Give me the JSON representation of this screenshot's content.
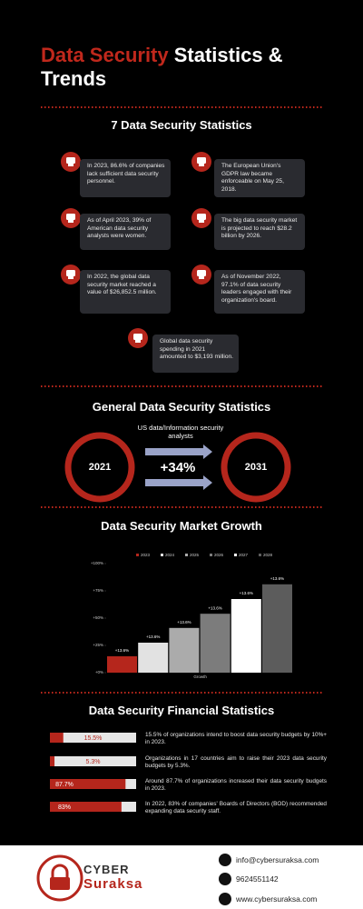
{
  "header": {
    "title_highlight": "Data Security",
    "title_rest": "Statistics & Trends"
  },
  "stats_section": {
    "heading": "7 Data Security Statistics",
    "items": [
      "In 2023, 86.6% of companies lack sufficient data security personnel.",
      "The European Union's GDPR law became enforceable on May 25, 2018.",
      "As of April 2023, 39% of American data security analysts were women.",
      "The big data security market is projected to reach $28.2 billion by 2026.",
      "In 2022, the global data security market reached a value of $26,852.5 million.",
      "As of November 2022, 97.1% of data security leaders engaged with their organization's board.",
      "Global data security spending in 2021 amounted to $3,193 million."
    ]
  },
  "general_section": {
    "heading": "General Data Security Statistics",
    "caption": "US data/Information security analysts",
    "from": "2021",
    "to": "2031",
    "change": "+34%"
  },
  "growth_chart": {
    "type": "bar",
    "title": "Data Security Market Growth",
    "categories": [
      "Growth"
    ],
    "series": [
      {
        "name": "2023",
        "color": "#b5261c",
        "values": [
          15
        ]
      },
      {
        "name": "2024",
        "color": "#e2e2e2",
        "values": [
          27.5
        ]
      },
      {
        "name": "2025",
        "color": "#ababab",
        "values": [
          41
        ]
      },
      {
        "name": "2026",
        "color": "#7c7c7c",
        "values": [
          54
        ]
      },
      {
        "name": "2027",
        "color": "#ffffff",
        "values": [
          67.5
        ]
      },
      {
        "name": "2028",
        "color": "#5c5c5c",
        "values": [
          81
        ]
      }
    ],
    "bar_annotations": [
      "+13.6%",
      "+13.6%",
      "+13.6%",
      "+13.6%",
      "+13.6%",
      "+13.6%"
    ],
    "ylim": [
      0,
      100
    ],
    "yticks": [
      {
        "value": 0,
        "label": "+0%"
      },
      {
        "value": 25,
        "label": "+25%"
      },
      {
        "value": 50,
        "label": "+50%"
      },
      {
        "value": 75,
        "label": "+75%"
      },
      {
        "value": 100,
        "label": "+100%"
      }
    ]
  },
  "financial_section": {
    "heading": "Data Security Financial Statistics",
    "items": [
      {
        "value": 15.5,
        "label": "15.5%",
        "text": "15.5% of organizations intend to boost data security budgets by 10%+ in 2023."
      },
      {
        "value": 5.3,
        "label": "5.3%",
        "text": "Organizations in 17 countries aim to raise their 2023 data security budgets by 5.3%."
      },
      {
        "value": 87.7,
        "label": "87.7%",
        "text": "Around 87.7% of organizations increased their data security budgets in 2023."
      },
      {
        "value": 83,
        "label": "83%",
        "text": "In 2022, 83% of companies' Boards of Directors (BOD) recommended expanding data security staff."
      }
    ]
  },
  "footer": {
    "brand_top": "CYBER",
    "brand_bottom": "Suraksa",
    "email": "info@cybersuraksa.com",
    "phone": "9624551142",
    "website": "www.cybersuraksa.com"
  }
}
